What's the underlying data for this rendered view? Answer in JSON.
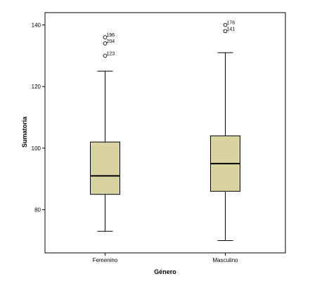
{
  "chart_data": {
    "type": "boxplot",
    "xlabel": "Género",
    "ylabel": "Sumatoria",
    "ylim": [
      66,
      144
    ],
    "yticks": [
      80,
      100,
      120,
      140
    ],
    "grid": false,
    "box_color": "#d8d3a0",
    "categories": [
      "Femenino",
      "Masculino"
    ],
    "boxes": [
      {
        "category": "Femenino",
        "whisker_low": 73,
        "q1": 85,
        "median": 91,
        "q3": 102,
        "whisker_high": 125,
        "outliers": [
          {
            "label": "196",
            "value": 136
          },
          {
            "label": "204",
            "value": 134
          },
          {
            "label": "123",
            "value": 130
          }
        ]
      },
      {
        "category": "Masculino",
        "whisker_low": 70,
        "q1": 86,
        "median": 95,
        "q3": 104,
        "whisker_high": 131,
        "outliers": [
          {
            "label": "176",
            "value": 140
          },
          {
            "label": "141",
            "value": 138
          }
        ]
      }
    ]
  }
}
